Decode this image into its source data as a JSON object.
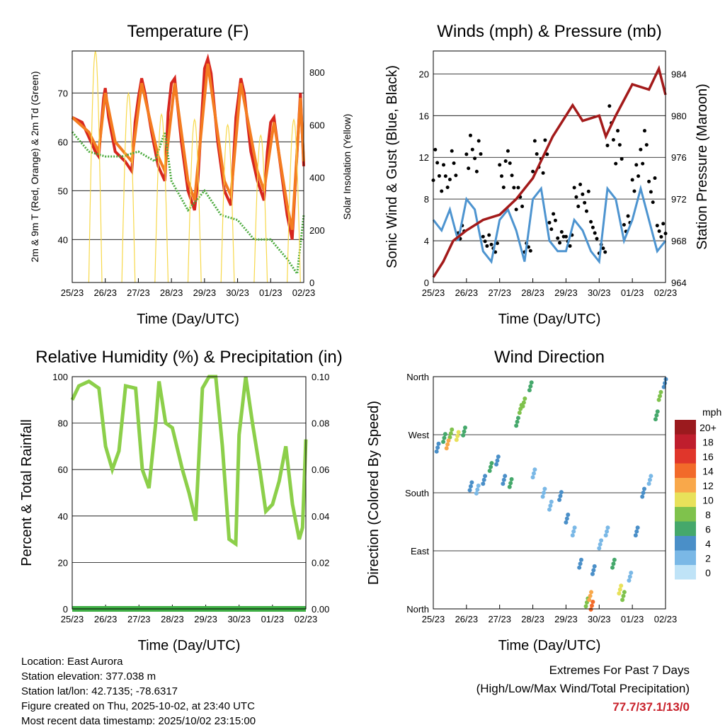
{
  "chart_data": [
    {
      "type": "line",
      "title": "Temperature (F)",
      "xlabel": "Time (Day/UTC)",
      "ylabel": "2m & 9m T (Red, Orange) & 2m Td (Green)",
      "ylabel_right": "Solar Insolation (Yellow)",
      "xticks": [
        "25/23",
        "26/23",
        "27/23",
        "28/23",
        "29/23",
        "30/23",
        "01/23",
        "02/23"
      ],
      "xlim": [
        0,
        7
      ],
      "ylim": [
        31.2,
        78.6
      ],
      "yticks": [
        40,
        50,
        60,
        70
      ],
      "ylim_right": [
        0,
        881
      ],
      "yticks_right": [
        0,
        200,
        400,
        600,
        800
      ],
      "series": [
        {
          "name": "2m T",
          "color": "#d7261e",
          "points": [
            [
              0,
              65
            ],
            [
              0.3,
              64
            ],
            [
              0.5,
              61
            ],
            [
              0.7,
              58
            ],
            [
              0.8,
              57
            ],
            [
              0.95,
              69
            ],
            [
              1.0,
              71
            ],
            [
              1.1,
              65
            ],
            [
              1.3,
              58
            ],
            [
              1.6,
              56
            ],
            [
              1.8,
              54
            ],
            [
              1.9,
              64
            ],
            [
              2.0,
              69
            ],
            [
              2.1,
              73
            ],
            [
              2.2,
              70
            ],
            [
              2.4,
              62
            ],
            [
              2.6,
              55
            ],
            [
              2.8,
              52
            ],
            [
              2.9,
              66
            ],
            [
              3.0,
              72
            ],
            [
              3.1,
              73
            ],
            [
              3.3,
              60
            ],
            [
              3.5,
              50
            ],
            [
              3.7,
              46
            ],
            [
              3.8,
              52
            ],
            [
              4.0,
              75
            ],
            [
              4.1,
              77
            ],
            [
              4.2,
              74
            ],
            [
              4.4,
              60
            ],
            [
              4.6,
              50
            ],
            [
              4.8,
              47
            ],
            [
              4.95,
              65
            ],
            [
              5.1,
              73
            ],
            [
              5.2,
              70
            ],
            [
              5.4,
              58
            ],
            [
              5.6,
              52
            ],
            [
              5.8,
              48
            ],
            [
              5.9,
              58
            ],
            [
              6.0,
              64
            ],
            [
              6.1,
              65
            ],
            [
              6.3,
              55
            ],
            [
              6.5,
              45
            ],
            [
              6.65,
              40
            ],
            [
              6.8,
              58
            ],
            [
              6.9,
              70
            ],
            [
              7.0,
              55
            ]
          ]
        },
        {
          "name": "9m T",
          "color": "#f47c20",
          "points": [
            [
              0,
              65
            ],
            [
              0.5,
              62
            ],
            [
              0.8,
              58
            ],
            [
              1.0,
              70
            ],
            [
              1.3,
              60
            ],
            [
              1.8,
              56
            ],
            [
              2.1,
              72
            ],
            [
              2.6,
              57
            ],
            [
              2.8,
              54
            ],
            [
              3.1,
              72
            ],
            [
              3.5,
              52
            ],
            [
              3.7,
              48
            ],
            [
              4.1,
              76
            ],
            [
              4.6,
              52
            ],
            [
              4.8,
              49
            ],
            [
              5.1,
              72
            ],
            [
              5.6,
              54
            ],
            [
              5.8,
              50
            ],
            [
              6.1,
              64
            ],
            [
              6.5,
              47
            ],
            [
              6.65,
              42
            ],
            [
              6.9,
              69
            ],
            [
              7.0,
              56
            ]
          ]
        },
        {
          "name": "2m Td",
          "color": "#4aaa3c",
          "points": [
            [
              0,
              62
            ],
            [
              0.5,
              58
            ],
            [
              1.0,
              57
            ],
            [
              1.5,
              57
            ],
            [
              2.0,
              58
            ],
            [
              2.5,
              56
            ],
            [
              2.8,
              62
            ],
            [
              3.0,
              52
            ],
            [
              3.5,
              46
            ],
            [
              4.0,
              50
            ],
            [
              4.5,
              45
            ],
            [
              5.0,
              44
            ],
            [
              5.5,
              40
            ],
            [
              6.0,
              40
            ],
            [
              6.5,
              36
            ],
            [
              6.8,
              33
            ],
            [
              7.0,
              45
            ]
          ]
        },
        {
          "name": "Solar",
          "color": "#f7d84a",
          "daily_peaks": [
            [
              0.7,
              880
            ],
            [
              1.7,
              720
            ],
            [
              2.7,
              640
            ],
            [
              3.7,
              620
            ],
            [
              4.7,
              600
            ],
            [
              5.7,
              560
            ],
            [
              6.7,
              620
            ]
          ]
        }
      ]
    },
    {
      "type": "line",
      "title": "Winds (mph) & Pressure (mb)",
      "xlabel": "Time (Day/UTC)",
      "ylabel": "Sonic Wind & Gust (Blue, Black)",
      "ylabel_right": "Station Pressure (Maroon)",
      "xticks": [
        "25/23",
        "26/23",
        "27/23",
        "28/23",
        "29/23",
        "30/23",
        "01/23",
        "02/23"
      ],
      "xlim": [
        0,
        7
      ],
      "ylim": [
        0,
        22.2
      ],
      "yticks": [
        0,
        4,
        8,
        12,
        16,
        20
      ],
      "ylim_right": [
        964,
        986.2
      ],
      "yticks_right": [
        964,
        968,
        972,
        976,
        980,
        984
      ],
      "series": [
        {
          "name": "Wind",
          "color": "#4d94d0",
          "interval_days": 0.25,
          "values": [
            6,
            5,
            7,
            4,
            8,
            7,
            3,
            2,
            6,
            7,
            5,
            2,
            8,
            9,
            4,
            3,
            3,
            6,
            5,
            3,
            2,
            9,
            8,
            4,
            6,
            9,
            6,
            3,
            4
          ]
        },
        {
          "name": "Gust",
          "color": "#000000",
          "interval_days": 0.25,
          "values": [
            14,
            12,
            13,
            6,
            15,
            14,
            5,
            4,
            12,
            13,
            10,
            4,
            14,
            15,
            7,
            5,
            5,
            10,
            9,
            6,
            4,
            18,
            15,
            7,
            12,
            15,
            11,
            6,
            5
          ]
        },
        {
          "name": "Pressure",
          "color": "#a31a1a",
          "points": [
            [
              0,
              964.5
            ],
            [
              0.3,
              966
            ],
            [
              0.6,
              968
            ],
            [
              1.0,
              969
            ],
            [
              1.5,
              970
            ],
            [
              2.0,
              970.5
            ],
            [
              2.5,
              972
            ],
            [
              3.0,
              974
            ],
            [
              3.3,
              976
            ],
            [
              3.6,
              978
            ],
            [
              4.0,
              980
            ],
            [
              4.2,
              981
            ],
            [
              4.5,
              979.5
            ],
            [
              5.0,
              980
            ],
            [
              5.2,
              978
            ],
            [
              5.5,
              980
            ],
            [
              6.0,
              983
            ],
            [
              6.5,
              982.5
            ],
            [
              6.8,
              984.5
            ],
            [
              7.0,
              982
            ]
          ]
        }
      ]
    },
    {
      "type": "line",
      "title": "Relative Humidity (%) & Precipitation (in)",
      "xlabel": "Time (Day/UTC)",
      "ylabel": "Percent & Total Rainfall",
      "xticks": [
        "25/23",
        "26/23",
        "27/23",
        "28/23",
        "29/23",
        "30/23",
        "01/23",
        "02/23"
      ],
      "xlim": [
        0,
        7
      ],
      "ylim": [
        0,
        100
      ],
      "yticks": [
        0,
        20,
        40,
        60,
        80,
        100
      ],
      "ylim_right": [
        0,
        0.1
      ],
      "yticks_right": [
        "0.00",
        "0.02",
        "0.04",
        "0.06",
        "0.08",
        "0.10"
      ],
      "series": [
        {
          "name": "RH",
          "color": "#8ccf4a",
          "points": [
            [
              0,
              90
            ],
            [
              0.2,
              96
            ],
            [
              0.5,
              98
            ],
            [
              0.8,
              95
            ],
            [
              1.0,
              70
            ],
            [
              1.2,
              60
            ],
            [
              1.4,
              68
            ],
            [
              1.6,
              96
            ],
            [
              1.9,
              95
            ],
            [
              2.1,
              60
            ],
            [
              2.3,
              52
            ],
            [
              2.5,
              80
            ],
            [
              2.6,
              98
            ],
            [
              2.8,
              80
            ],
            [
              3.0,
              78
            ],
            [
              3.3,
              60
            ],
            [
              3.5,
              50
            ],
            [
              3.7,
              38
            ],
            [
              3.9,
              95
            ],
            [
              4.1,
              100
            ],
            [
              4.3,
              100
            ],
            [
              4.5,
              70
            ],
            [
              4.7,
              30
            ],
            [
              4.9,
              28
            ],
            [
              5.0,
              75
            ],
            [
              5.2,
              100
            ],
            [
              5.4,
              80
            ],
            [
              5.6,
              62
            ],
            [
              5.8,
              42
            ],
            [
              6.0,
              45
            ],
            [
              6.2,
              55
            ],
            [
              6.4,
              70
            ],
            [
              6.6,
              45
            ],
            [
              6.8,
              30
            ],
            [
              6.9,
              35
            ],
            [
              7.0,
              73
            ]
          ]
        },
        {
          "name": "Precip",
          "color": "#3fae45",
          "points": [
            [
              0,
              0
            ],
            [
              7,
              0
            ]
          ]
        }
      ]
    },
    {
      "type": "scatter",
      "title": "Wind Direction",
      "xlabel": "Time (Day/UTC)",
      "ylabel": "Direction (Colored By Speed)",
      "xticks": [
        "25/23",
        "26/23",
        "27/23",
        "28/23",
        "29/23",
        "30/23",
        "01/23",
        "02/23"
      ],
      "xlim": [
        0,
        7
      ],
      "ylim": [
        0,
        360
      ],
      "yticks": [
        "North",
        "East",
        "South",
        "West",
        "North"
      ],
      "legend": {
        "title": "mph",
        "labels": [
          "20+",
          "18",
          "16",
          "14",
          "12",
          "10",
          "8",
          "6",
          "4",
          "2",
          "0"
        ],
        "colors": [
          "#9b1a1e",
          "#bf1e2d",
          "#e0362b",
          "#f26a2a",
          "#f9a84a",
          "#e8e15a",
          "#7fc24c",
          "#45a86b",
          "#4a8fc8",
          "#7ab8e6",
          "#bfe3f7"
        ]
      },
      "points": [
        [
          0.1,
          250,
          4
        ],
        [
          0.3,
          265,
          6
        ],
        [
          0.5,
          272,
          8
        ],
        [
          0.7,
          268,
          10
        ],
        [
          0.9,
          275,
          6
        ],
        [
          1.1,
          190,
          4
        ],
        [
          1.3,
          185,
          3
        ],
        [
          1.5,
          200,
          5
        ],
        [
          1.7,
          220,
          6
        ],
        [
          1.9,
          230,
          4
        ],
        [
          2.1,
          200,
          5
        ],
        [
          2.3,
          195,
          7
        ],
        [
          2.5,
          290,
          6
        ],
        [
          2.7,
          320,
          8
        ],
        [
          2.9,
          345,
          7
        ],
        [
          3.0,
          210,
          3
        ],
        [
          3.3,
          180,
          3
        ],
        [
          3.5,
          160,
          2
        ],
        [
          3.8,
          175,
          5
        ],
        [
          4.0,
          140,
          4
        ],
        [
          4.2,
          120,
          3
        ],
        [
          4.4,
          70,
          5
        ],
        [
          4.6,
          10,
          9
        ],
        [
          4.7,
          20,
          12
        ],
        [
          4.8,
          60,
          4
        ],
        [
          5.0,
          100,
          3
        ],
        [
          5.2,
          120,
          2
        ],
        [
          5.4,
          70,
          7
        ],
        [
          5.6,
          30,
          10
        ],
        [
          5.7,
          20,
          9
        ],
        [
          5.9,
          50,
          3
        ],
        [
          6.1,
          120,
          4
        ],
        [
          6.3,
          180,
          5
        ],
        [
          6.5,
          200,
          3
        ],
        [
          6.7,
          300,
          6
        ],
        [
          6.8,
          330,
          8
        ],
        [
          6.95,
          350,
          5
        ],
        [
          2.6,
          310,
          9
        ],
        [
          4.75,
          5,
          14
        ],
        [
          0.4,
          255,
          12
        ]
      ]
    }
  ],
  "info": {
    "location": "Location: East Aurora",
    "elevation": "Station elevation: 377.038 m",
    "latlon": "Station lat/lon: 42.7135; -78.6317",
    "created": "Figure created on Thu, 2025-10-02, at 23:40 UTC",
    "recent": "Most recent data timestamp: 2025/10/02 23:15:00"
  },
  "extremes": {
    "title": "Extremes For Past 7 Days",
    "subtitle": "(High/Low/Max Wind/Total Precipitation)",
    "value": "77.7/37.1/13/0"
  }
}
